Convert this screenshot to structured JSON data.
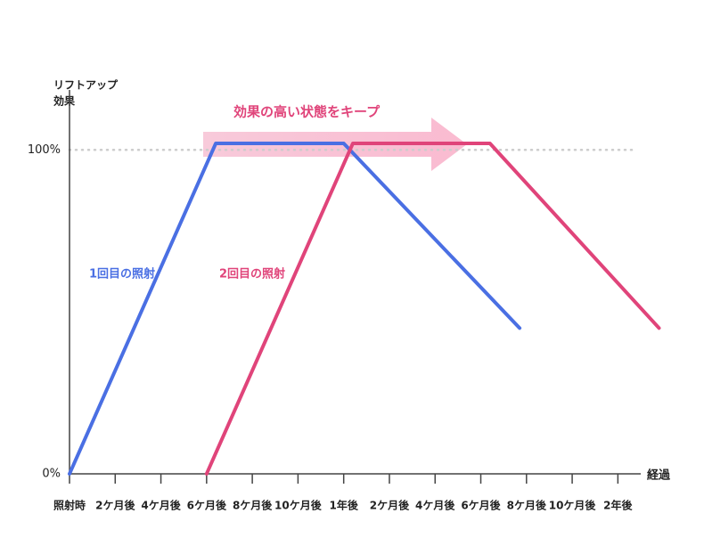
{
  "chart_data": {
    "type": "line",
    "y_label": [
      "リフトアップ",
      "効果"
    ],
    "x_label": "経過",
    "annotations": [
      "効果の高い状態をキープ",
      "1回目の照射",
      "2回目の照射"
    ],
    "xlim": [
      0,
      25
    ],
    "xticks": [
      {
        "value": 0,
        "label": "照射時"
      },
      {
        "value": 2,
        "label": "2ケ月後"
      },
      {
        "value": 4,
        "label": "4ケ月後"
      },
      {
        "value": 6,
        "label": "6ケ月後"
      },
      {
        "value": 8,
        "label": "8ケ月後"
      },
      {
        "value": 10,
        "label": "10ケ月後"
      },
      {
        "value": 12,
        "label": "1年後"
      },
      {
        "value": 14,
        "label": "2ケ月後"
      },
      {
        "value": 16,
        "label": "4ケ月後"
      },
      {
        "value": 18,
        "label": "6ケ月後"
      },
      {
        "value": 20,
        "label": "8ケ月後"
      },
      {
        "value": 22,
        "label": "10ケ月後"
      },
      {
        "value": 24,
        "label": "2年後"
      }
    ],
    "ylim": [
      0,
      113
    ],
    "yticks": [
      {
        "value": 0,
        "label": "0%"
      },
      {
        "value": 100,
        "label": "100%"
      }
    ],
    "grid": true,
    "series": [
      {
        "name": "1回目",
        "color": "#4a6fe3",
        "x": [
          0,
          6.4,
          12,
          19.7
        ],
        "values": [
          0,
          102,
          102,
          45
        ]
      },
      {
        "name": "2回目",
        "color": "#e0447a",
        "x": [
          6,
          12.4,
          18.4,
          25.8
        ],
        "values": [
          0,
          102,
          102,
          45
        ]
      }
    ]
  }
}
